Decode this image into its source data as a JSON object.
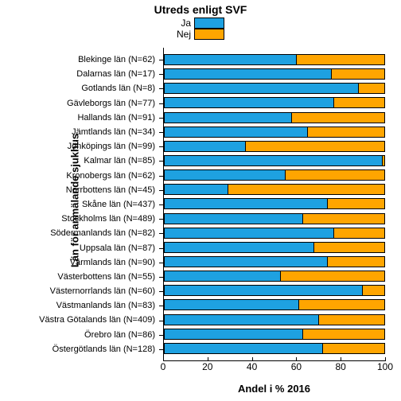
{
  "chart": {
    "type": "stacked-bar-horizontal",
    "title": "Utreds enligt SVF",
    "title_fontsize": 14,
    "legend": {
      "labels": [
        "Ja",
        "Nej"
      ],
      "colors": [
        "#1EA1E1",
        "#FFA500"
      ]
    },
    "y_axis_title": "Län för anmälande sjukhus",
    "x_axis_title": "Andel i % 2016",
    "xlim": [
      0,
      100
    ],
    "xtick_step": 20,
    "xticks": [
      0,
      20,
      40,
      60,
      80,
      100
    ],
    "series_colors": {
      "ja": "#1EA1E1",
      "nej": "#FFA500"
    },
    "background_color": "#ffffff",
    "border_color": "#000000",
    "label_fontsize": 11,
    "tick_fontsize": 12,
    "axis_title_fontsize": 13,
    "rows": [
      {
        "label": "Blekinge län (N=62)",
        "ja": 60,
        "nej": 40
      },
      {
        "label": "Dalarnas län (N=17)",
        "ja": 76,
        "nej": 24
      },
      {
        "label": "Gotlands län (N=8)",
        "ja": 88,
        "nej": 12
      },
      {
        "label": "Gävleborgs län (N=77)",
        "ja": 77,
        "nej": 23
      },
      {
        "label": "Hallands län (N=91)",
        "ja": 58,
        "nej": 42
      },
      {
        "label": "Jämtlands län (N=34)",
        "ja": 65,
        "nej": 35
      },
      {
        "label": "Jönköpings län (N=99)",
        "ja": 37,
        "nej": 63
      },
      {
        "label": "Kalmar län (N=85)",
        "ja": 99,
        "nej": 1
      },
      {
        "label": "Kronobergs län (N=62)",
        "ja": 55,
        "nej": 45
      },
      {
        "label": "Norrbottens län (N=45)",
        "ja": 29,
        "nej": 71
      },
      {
        "label": "Skåne län (N=437)",
        "ja": 74,
        "nej": 26
      },
      {
        "label": "Stockholms län (N=489)",
        "ja": 63,
        "nej": 37
      },
      {
        "label": "Södermanlands län (N=82)",
        "ja": 77,
        "nej": 23
      },
      {
        "label": "Uppsala län (N=87)",
        "ja": 68,
        "nej": 32
      },
      {
        "label": "Värmlands län (N=90)",
        "ja": 74,
        "nej": 26
      },
      {
        "label": "Västerbottens län (N=55)",
        "ja": 53,
        "nej": 47
      },
      {
        "label": "Västernorrlands län (N=60)",
        "ja": 90,
        "nej": 10
      },
      {
        "label": "Västmanlands län (N=83)",
        "ja": 61,
        "nej": 39
      },
      {
        "label": "Västra Götalands län (N=409)",
        "ja": 70,
        "nej": 30
      },
      {
        "label": "Örebro län (N=86)",
        "ja": 63,
        "nej": 37
      },
      {
        "label": "Östergötlands län (N=128)",
        "ja": 72,
        "nej": 28
      }
    ]
  }
}
